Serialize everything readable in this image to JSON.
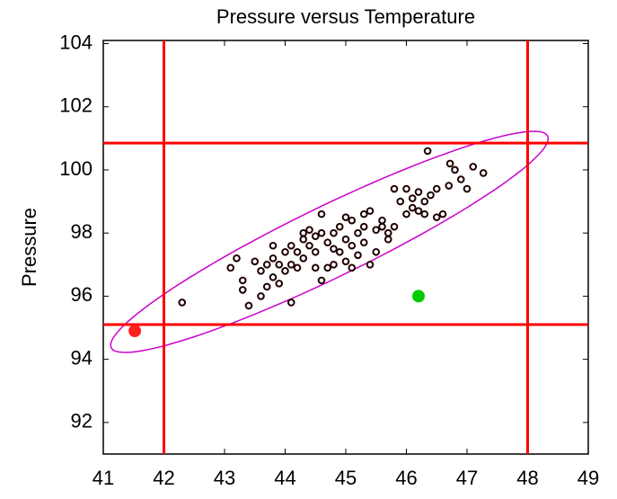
{
  "chart_data": {
    "type": "scatter",
    "title": "Pressure versus Temperature",
    "ylabel": "Pressure",
    "xlim": [
      41,
      49
    ],
    "xticks": [
      41,
      42,
      43,
      44,
      45,
      46,
      47,
      48,
      49
    ],
    "ylim": [
      91,
      104.1
    ],
    "yticks": [
      92,
      94,
      96,
      98,
      100,
      102,
      104
    ],
    "series": [
      {
        "color": "#200000",
        "marker": "open",
        "x": [
          42.3,
          43.1,
          43.2,
          43.3,
          43.3,
          43.4,
          43.5,
          43.6,
          43.6,
          43.7,
          43.7,
          43.8,
          43.8,
          43.8,
          43.9,
          43.9,
          44.0,
          44.0,
          44.1,
          44.1,
          44.1,
          44.2,
          44.2,
          44.3,
          44.3,
          44.3,
          44.4,
          44.4,
          44.5,
          44.5,
          44.5,
          44.6,
          44.6,
          44.6,
          44.7,
          44.7,
          44.8,
          44.8,
          44.8,
          44.9,
          44.9,
          45.0,
          45.0,
          45.0,
          45.1,
          45.1,
          45.1,
          45.2,
          45.2,
          45.3,
          45.3,
          45.3,
          45.4,
          45.4,
          45.5,
          45.5,
          45.6,
          45.6,
          45.7,
          45.7,
          45.8,
          45.9,
          46.0,
          46.1,
          46.1,
          46.2,
          46.2,
          46.3,
          46.3,
          46.4,
          46.5,
          46.5,
          46.6,
          46.7,
          46.8,
          46.9,
          47.0,
          47.1,
          47.27,
          46.35,
          46.0,
          45.8,
          46.72
        ],
        "values": [
          95.8,
          96.9,
          97.2,
          96.5,
          96.2,
          95.7,
          97.1,
          96.0,
          96.8,
          96.3,
          97.0,
          97.2,
          96.6,
          97.6,
          96.4,
          97.0,
          96.8,
          97.4,
          97.0,
          97.6,
          95.8,
          96.9,
          97.4,
          97.8,
          98.0,
          97.2,
          97.6,
          98.1,
          97.9,
          97.4,
          96.9,
          96.5,
          98.0,
          98.6,
          97.7,
          96.9,
          97.5,
          98.0,
          97.0,
          98.2,
          97.4,
          98.5,
          97.8,
          97.1,
          98.4,
          97.6,
          96.9,
          98.0,
          97.3,
          98.6,
          97.7,
          98.2,
          98.7,
          97.0,
          98.1,
          97.4,
          98.4,
          98.2,
          97.8,
          98.0,
          98.2,
          99.0,
          99.4,
          98.8,
          99.1,
          98.7,
          99.3,
          99.0,
          98.6,
          99.2,
          99.4,
          98.5,
          98.6,
          99.5,
          100.0,
          99.7,
          99.4,
          100.1,
          99.9,
          100.6,
          98.6,
          99.4,
          100.2
        ]
      },
      {
        "color": "#ff2020",
        "marker": "filled",
        "x": [
          41.52
        ],
        "values": [
          94.9
        ]
      },
      {
        "color": "#00cc00",
        "marker": "filled",
        "x": [
          46.2
        ],
        "values": [
          96.0
        ]
      }
    ],
    "vlines": [
      42,
      48
    ],
    "hlines": [
      95.1,
      100.85
    ],
    "line_color": "#ff0000",
    "ellipse": {
      "center": [
        44.73,
        97.72
      ],
      "axis1": [
        3.6,
        3.35
      ],
      "axis2": [
        -0.25,
        1.02
      ],
      "color": "#cc00cc"
    }
  }
}
